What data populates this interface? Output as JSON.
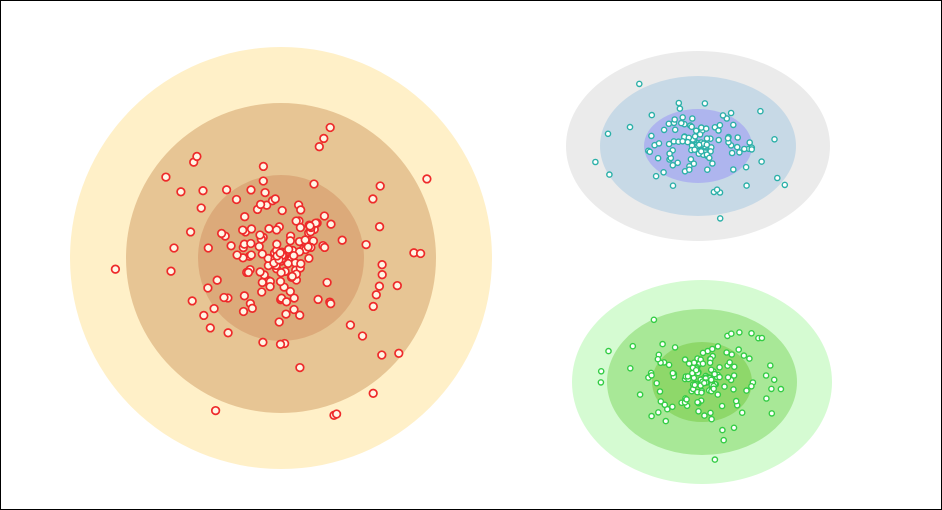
{
  "diagram": {
    "clusters": [
      {
        "id": "cluster-red",
        "point_count": 190,
        "ring_colors": [
          "#fff0c8",
          "#e7c594",
          "#dcaa7a"
        ],
        "point_color": "#ee2a2a"
      },
      {
        "id": "cluster-teal",
        "point_count": 120,
        "ring_colors": [
          "#ebebeb",
          "#c7d9e6",
          "#aeb5ee"
        ],
        "point_color": "#2bb0a8"
      },
      {
        "id": "cluster-green",
        "point_count": 150,
        "ring_colors": [
          "#d5fbd2",
          "#a8e897",
          "#8ed86a"
        ],
        "point_color": "#33cc44"
      }
    ]
  }
}
